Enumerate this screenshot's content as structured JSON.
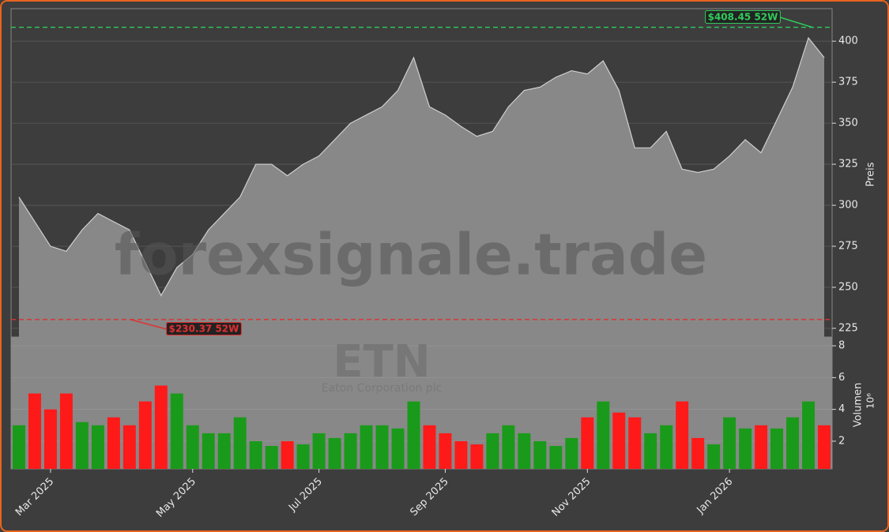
{
  "chart_data": [
    {
      "type": "area",
      "name": "price",
      "watermark": "forexsignale.trade",
      "ylabel": "Preis",
      "values": [
        305,
        290,
        275,
        272,
        285,
        295,
        290,
        285,
        265,
        245,
        262,
        270,
        285,
        295,
        305,
        325,
        325,
        318,
        325,
        330,
        340,
        350,
        355,
        360,
        370,
        390,
        360,
        355,
        348,
        342,
        345,
        360,
        370,
        372,
        378,
        382,
        380,
        388,
        370,
        335,
        335,
        345,
        322,
        320,
        322,
        330,
        340,
        332,
        352,
        372,
        402,
        390
      ],
      "color": "#888888",
      "line_color": "#cfcfcf",
      "ylim": [
        219.7,
        419.8
      ],
      "yticks": [
        225,
        250,
        275,
        300,
        325,
        350,
        375,
        400
      ],
      "grid": true,
      "high": {
        "value": 408.45,
        "label": "$408.45 52W",
        "color": "#2ecc5b"
      },
      "low": {
        "value": 230.37,
        "label": "$230.37 52W",
        "color": "#e03030"
      }
    },
    {
      "type": "bar",
      "name": "volume",
      "ticker": "ETN",
      "company": "Eaton Corporation plc",
      "ylabel": "Volumen",
      "unit_label": "10⁶",
      "categories": [
        null,
        null,
        "Mar 2025",
        null,
        null,
        null,
        null,
        null,
        null,
        null,
        null,
        "May 2025",
        null,
        null,
        null,
        null,
        null,
        null,
        null,
        "Jul 2025",
        null,
        null,
        null,
        null,
        null,
        null,
        null,
        "Sep 2025",
        null,
        null,
        null,
        null,
        null,
        null,
        null,
        null,
        "Nov 2025",
        null,
        null,
        null,
        null,
        null,
        null,
        null,
        null,
        "Jan 2026",
        null,
        null,
        null,
        null,
        null,
        null
      ],
      "values": [
        3,
        5,
        4,
        5,
        3.2,
        3,
        3.5,
        3,
        4.5,
        5.5,
        5,
        3,
        2.5,
        2.5,
        3.5,
        2,
        1.7,
        2,
        1.8,
        2.5,
        2.2,
        2.5,
        3,
        3,
        2.8,
        4.5,
        3,
        2.5,
        2,
        1.8,
        2.5,
        3,
        2.5,
        2,
        1.7,
        2.2,
        3.5,
        4.5,
        3.8,
        3.5,
        2.5,
        3,
        4.5,
        2.2,
        1.8,
        3.5,
        2.8,
        3,
        2.8,
        3.5,
        4.5,
        3
      ],
      "up_color": "#1a9a1a",
      "down_color": "#ff1a1a",
      "ylim": [
        0.26,
        8.5
      ],
      "yticks": [
        2,
        4,
        6,
        8
      ],
      "grid": true
    }
  ]
}
